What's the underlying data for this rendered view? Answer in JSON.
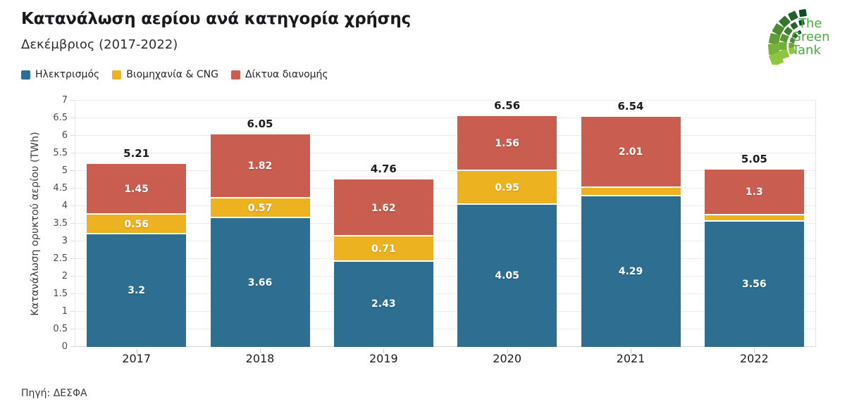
{
  "header": {
    "title": "Κατανάλωση αερίου ανά κατηγορία χρήσης",
    "subtitle": "Δεκέμβριος (2017-2022)"
  },
  "logo": {
    "lines": [
      "The",
      "Green",
      "Tank"
    ],
    "text_color": "#50a746"
  },
  "chart_data": {
    "type": "bar",
    "stacked": true,
    "title": "Κατανάλωση αερίου ανά κατηγορία χρήσης",
    "subtitle": "Δεκέμβριος (2017-2022)",
    "categories": [
      "2017",
      "2018",
      "2019",
      "2020",
      "2021",
      "2022"
    ],
    "series": [
      {
        "name": "Ηλεκτρισμός",
        "color": "#2d6e91",
        "values": [
          3.2,
          3.66,
          2.43,
          4.05,
          4.29,
          3.56
        ],
        "labels": [
          "3.2",
          "3.66",
          "2.43",
          "4.05",
          "4.29",
          "3.56"
        ]
      },
      {
        "name": "Βιομηχανία & CNG",
        "color": "#edb220",
        "values": [
          0.56,
          0.57,
          0.71,
          0.95,
          0.24,
          0.19
        ],
        "labels": [
          "0.56",
          "0.57",
          "0.71",
          "0.95",
          "",
          ""
        ]
      },
      {
        "name": "Δίκτυα διανομής",
        "color": "#c95d50",
        "values": [
          1.45,
          1.82,
          1.62,
          1.56,
          2.01,
          1.3
        ],
        "labels": [
          "1.45",
          "1.82",
          "1.62",
          "1.56",
          "2.01",
          "1.3"
        ]
      }
    ],
    "totals": [
      "5.21",
      "6.05",
      "4.76",
      "6.56",
      "6.54",
      "5.05"
    ],
    "ylabel": "Κατανάλωση ορυκτού αερίου (TWh)",
    "ylim": [
      0,
      7
    ],
    "yticks": [
      "0",
      "0.5",
      "1",
      "1.5",
      "2",
      "2.5",
      "3",
      "3.5",
      "4",
      "4.5",
      "5",
      "5.5",
      "6",
      "6.5",
      "7"
    ],
    "grid": true,
    "legend_position": "top"
  },
  "footer": {
    "source": "Πηγή: ΔΕΣΦΑ"
  }
}
